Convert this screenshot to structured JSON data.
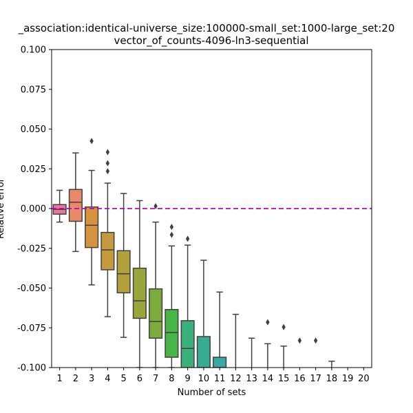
{
  "chart_data": {
    "type": "box",
    "title_line1": "_association:identical-universe_size:100000-small_set:1000-large_set:20",
    "title_line2": "vector_of_counts-4096-ln3-sequential",
    "xlabel": "Number of sets",
    "ylabel": "Relative error",
    "ylim": [
      -0.1,
      0.1
    ],
    "yticks": [
      "-0.100",
      "-0.075",
      "-0.050",
      "-0.025",
      "0.000",
      "0.025",
      "0.050",
      "0.075",
      "0.100"
    ],
    "categories": [
      "1",
      "2",
      "3",
      "4",
      "5",
      "6",
      "7",
      "8",
      "9",
      "10",
      "11",
      "12",
      "13",
      "14",
      "15",
      "16",
      "17",
      "18",
      "19",
      "20"
    ],
    "reference_line": {
      "y": 0.0,
      "color": "#bf00bf",
      "style": "dashed"
    },
    "colors": [
      "#e8789a",
      "#e8896b",
      "#d5923f",
      "#c59a3e",
      "#b1a03c",
      "#9aa63b",
      "#7cac3b",
      "#48b547",
      "#3bb07a",
      "#39ac94",
      "#38aaa3",
      "#3aa8b2",
      "#3ca6c2",
      "#44a2d8",
      "#7a97e8",
      "#a68cf0",
      "#ca7fe9",
      "#e06fd8",
      "#e876b6",
      "#e87a9f"
    ],
    "boxes": [
      {
        "category": "1",
        "whislo": -0.0085,
        "q1": -0.0035,
        "med": -0.0005,
        "q3": 0.0025,
        "whishi": 0.0115,
        "fliers": []
      },
      {
        "category": "2",
        "whislo": -0.027,
        "q1": -0.008,
        "med": 0.004,
        "q3": 0.012,
        "whishi": 0.035,
        "fliers": []
      },
      {
        "category": "3",
        "whislo": -0.048,
        "q1": -0.0245,
        "med": -0.0105,
        "q3": 0.001,
        "whishi": 0.024,
        "fliers": [
          0.0425
        ]
      },
      {
        "category": "4",
        "whislo": -0.068,
        "q1": -0.0385,
        "med": -0.026,
        "q3": -0.015,
        "whishi": 0.016,
        "fliers": [
          0.0235,
          0.0285,
          0.0355
        ]
      },
      {
        "category": "5",
        "whislo": -0.081,
        "q1": -0.053,
        "med": -0.041,
        "q3": -0.0265,
        "whishi": 0.0095,
        "fliers": []
      },
      {
        "category": "6",
        "whislo": -0.1,
        "q1": -0.069,
        "med": -0.058,
        "q3": -0.0375,
        "whishi": 0.005,
        "fliers": []
      },
      {
        "category": "7",
        "whislo": -0.1,
        "q1": -0.0815,
        "med": -0.071,
        "q3": -0.0505,
        "whishi": -0.0085,
        "fliers": [
          0.0015
        ]
      },
      {
        "category": "8",
        "whislo": -0.1,
        "q1": -0.0935,
        "med": -0.078,
        "q3": -0.0635,
        "whishi": -0.0235,
        "fliers": [
          -0.0165,
          -0.0115
        ]
      },
      {
        "category": "9",
        "whislo": -0.1,
        "q1": -0.1,
        "med": -0.088,
        "q3": -0.0705,
        "whishi": -0.023,
        "fliers": [
          -0.019
        ]
      },
      {
        "category": "10",
        "whislo": -0.1,
        "q1": -0.1,
        "med": -0.1,
        "q3": -0.0805,
        "whishi": -0.0325,
        "fliers": []
      },
      {
        "category": "11",
        "whislo": -0.1,
        "q1": -0.1,
        "med": -0.1,
        "q3": -0.0935,
        "whishi": -0.0525,
        "fliers": []
      },
      {
        "category": "12",
        "whislo": -0.1,
        "q1": -0.1,
        "med": -0.1,
        "q3": -0.1,
        "whishi": -0.0665,
        "fliers": []
      },
      {
        "category": "13",
        "whislo": -0.1,
        "q1": -0.1,
        "med": -0.1,
        "q3": -0.1,
        "whishi": -0.0815,
        "fliers": []
      },
      {
        "category": "14",
        "whislo": -0.1,
        "q1": -0.1,
        "med": -0.1,
        "q3": -0.1,
        "whishi": -0.085,
        "fliers": [
          -0.0715
        ]
      },
      {
        "category": "15",
        "whislo": -0.1,
        "q1": -0.1,
        "med": -0.1,
        "q3": -0.1,
        "whishi": -0.0865,
        "fliers": [
          -0.0745
        ]
      },
      {
        "category": "16",
        "whislo": -0.1,
        "q1": -0.1,
        "med": -0.1,
        "q3": -0.1,
        "whishi": -0.1,
        "fliers": [
          -0.083
        ]
      },
      {
        "category": "17",
        "whislo": -0.1,
        "q1": -0.1,
        "med": -0.1,
        "q3": -0.1,
        "whishi": -0.1,
        "fliers": [
          -0.083
        ]
      },
      {
        "category": "18",
        "whislo": -0.1,
        "q1": -0.1,
        "med": -0.1,
        "q3": -0.1,
        "whishi": -0.096,
        "fliers": []
      },
      {
        "category": "19",
        "whislo": -0.1,
        "q1": -0.1,
        "med": -0.1,
        "q3": -0.1,
        "whishi": -0.1,
        "fliers": []
      },
      {
        "category": "20",
        "whislo": -0.1,
        "q1": -0.1,
        "med": -0.1,
        "q3": -0.1,
        "whishi": -0.1,
        "fliers": []
      }
    ]
  }
}
